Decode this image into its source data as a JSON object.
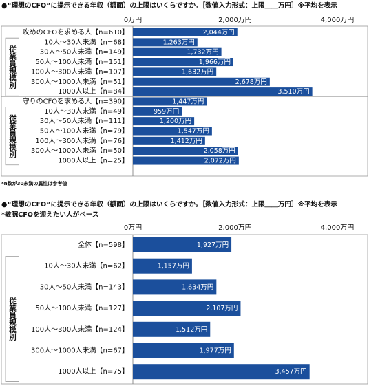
{
  "chart_data": [
    {
      "type": "bar",
      "orientation": "horizontal",
      "title": "●“理想のCFO”に提示できる年収（額面）の上限はいくらですか。［数値入力形式：上限＿＿万円］※平均を表示",
      "note": "*n数が30未満の属性は参考値",
      "group_labels": [
        "従業員規模別",
        "従業員規模別"
      ],
      "categories": [
        "攻めのCFOを求める人【n=610】",
        "10人～30人未満【n=68】",
        "30人～50人未満【n=149】",
        "50人～100人未満【n=151】",
        "100人～300人未満【n=107】",
        "300人～1000人未満【n=51】",
        "1000人以上【n=84】",
        "守りのCFOを求める人【n=390】",
        "10人～30人未満【n=49】",
        "30人～50人未満【n=111】",
        "50人～100人未満【n=79】",
        "100人～300人未満【n=76】",
        "300人～1000人未満【n=50】",
        "1000人以上【n=25】"
      ],
      "values": [
        2044,
        1263,
        1732,
        1966,
        1632,
        2678,
        3510,
        1447,
        959,
        1200,
        1547,
        1412,
        2058,
        2072
      ],
      "value_labels": [
        "2,044万円",
        "1,263万円",
        "1,732万円",
        "1,966万円",
        "1,632万円",
        "2,678万円",
        "3,510万円",
        "1,447万円",
        "959万円",
        "1,200万円",
        "1,547万円",
        "1,412万円",
        "2,058万円",
        "2,072万円"
      ],
      "color": "#1b4f9c",
      "xlim": [
        0,
        4000
      ],
      "xticks": [
        {
          "value": 0,
          "label": "0万円"
        },
        {
          "value": 2000,
          "label": "2,000万円"
        },
        {
          "value": 4000,
          "label": "4,000万円"
        }
      ],
      "grid": false
    },
    {
      "type": "bar",
      "orientation": "horizontal",
      "title": "●“理想のCFO”に提示できる年収（額面）の上限はいくらですか。［数値入力形式：上限＿＿万円］※平均を表示",
      "subtitle": "*敏腕CFOを迎えたい人がベース",
      "group_labels": [
        "従業員規模別"
      ],
      "categories": [
        "全体【n=598】",
        "10人～30人未満【n=62】",
        "30人～50人未満【n=143】",
        "50人～100人未満【n=127】",
        "100人～300人未満【n=124】",
        "300人～1000人未満【n=67】",
        "1000人以上【n=75】"
      ],
      "values": [
        1927,
        1157,
        1634,
        2107,
        1512,
        1977,
        3457
      ],
      "value_labels": [
        "1,927万円",
        "1,157万円",
        "1,634万円",
        "2,107万円",
        "1,512万円",
        "1,977万円",
        "3,457万円"
      ],
      "color": "#1b4f9c",
      "xlim": [
        0,
        4000
      ],
      "xticks": [
        {
          "value": 0,
          "label": "0万円"
        },
        {
          "value": 2000,
          "label": "2,000万円"
        },
        {
          "value": 4000,
          "label": "4,000万円"
        }
      ],
      "grid": false
    }
  ]
}
